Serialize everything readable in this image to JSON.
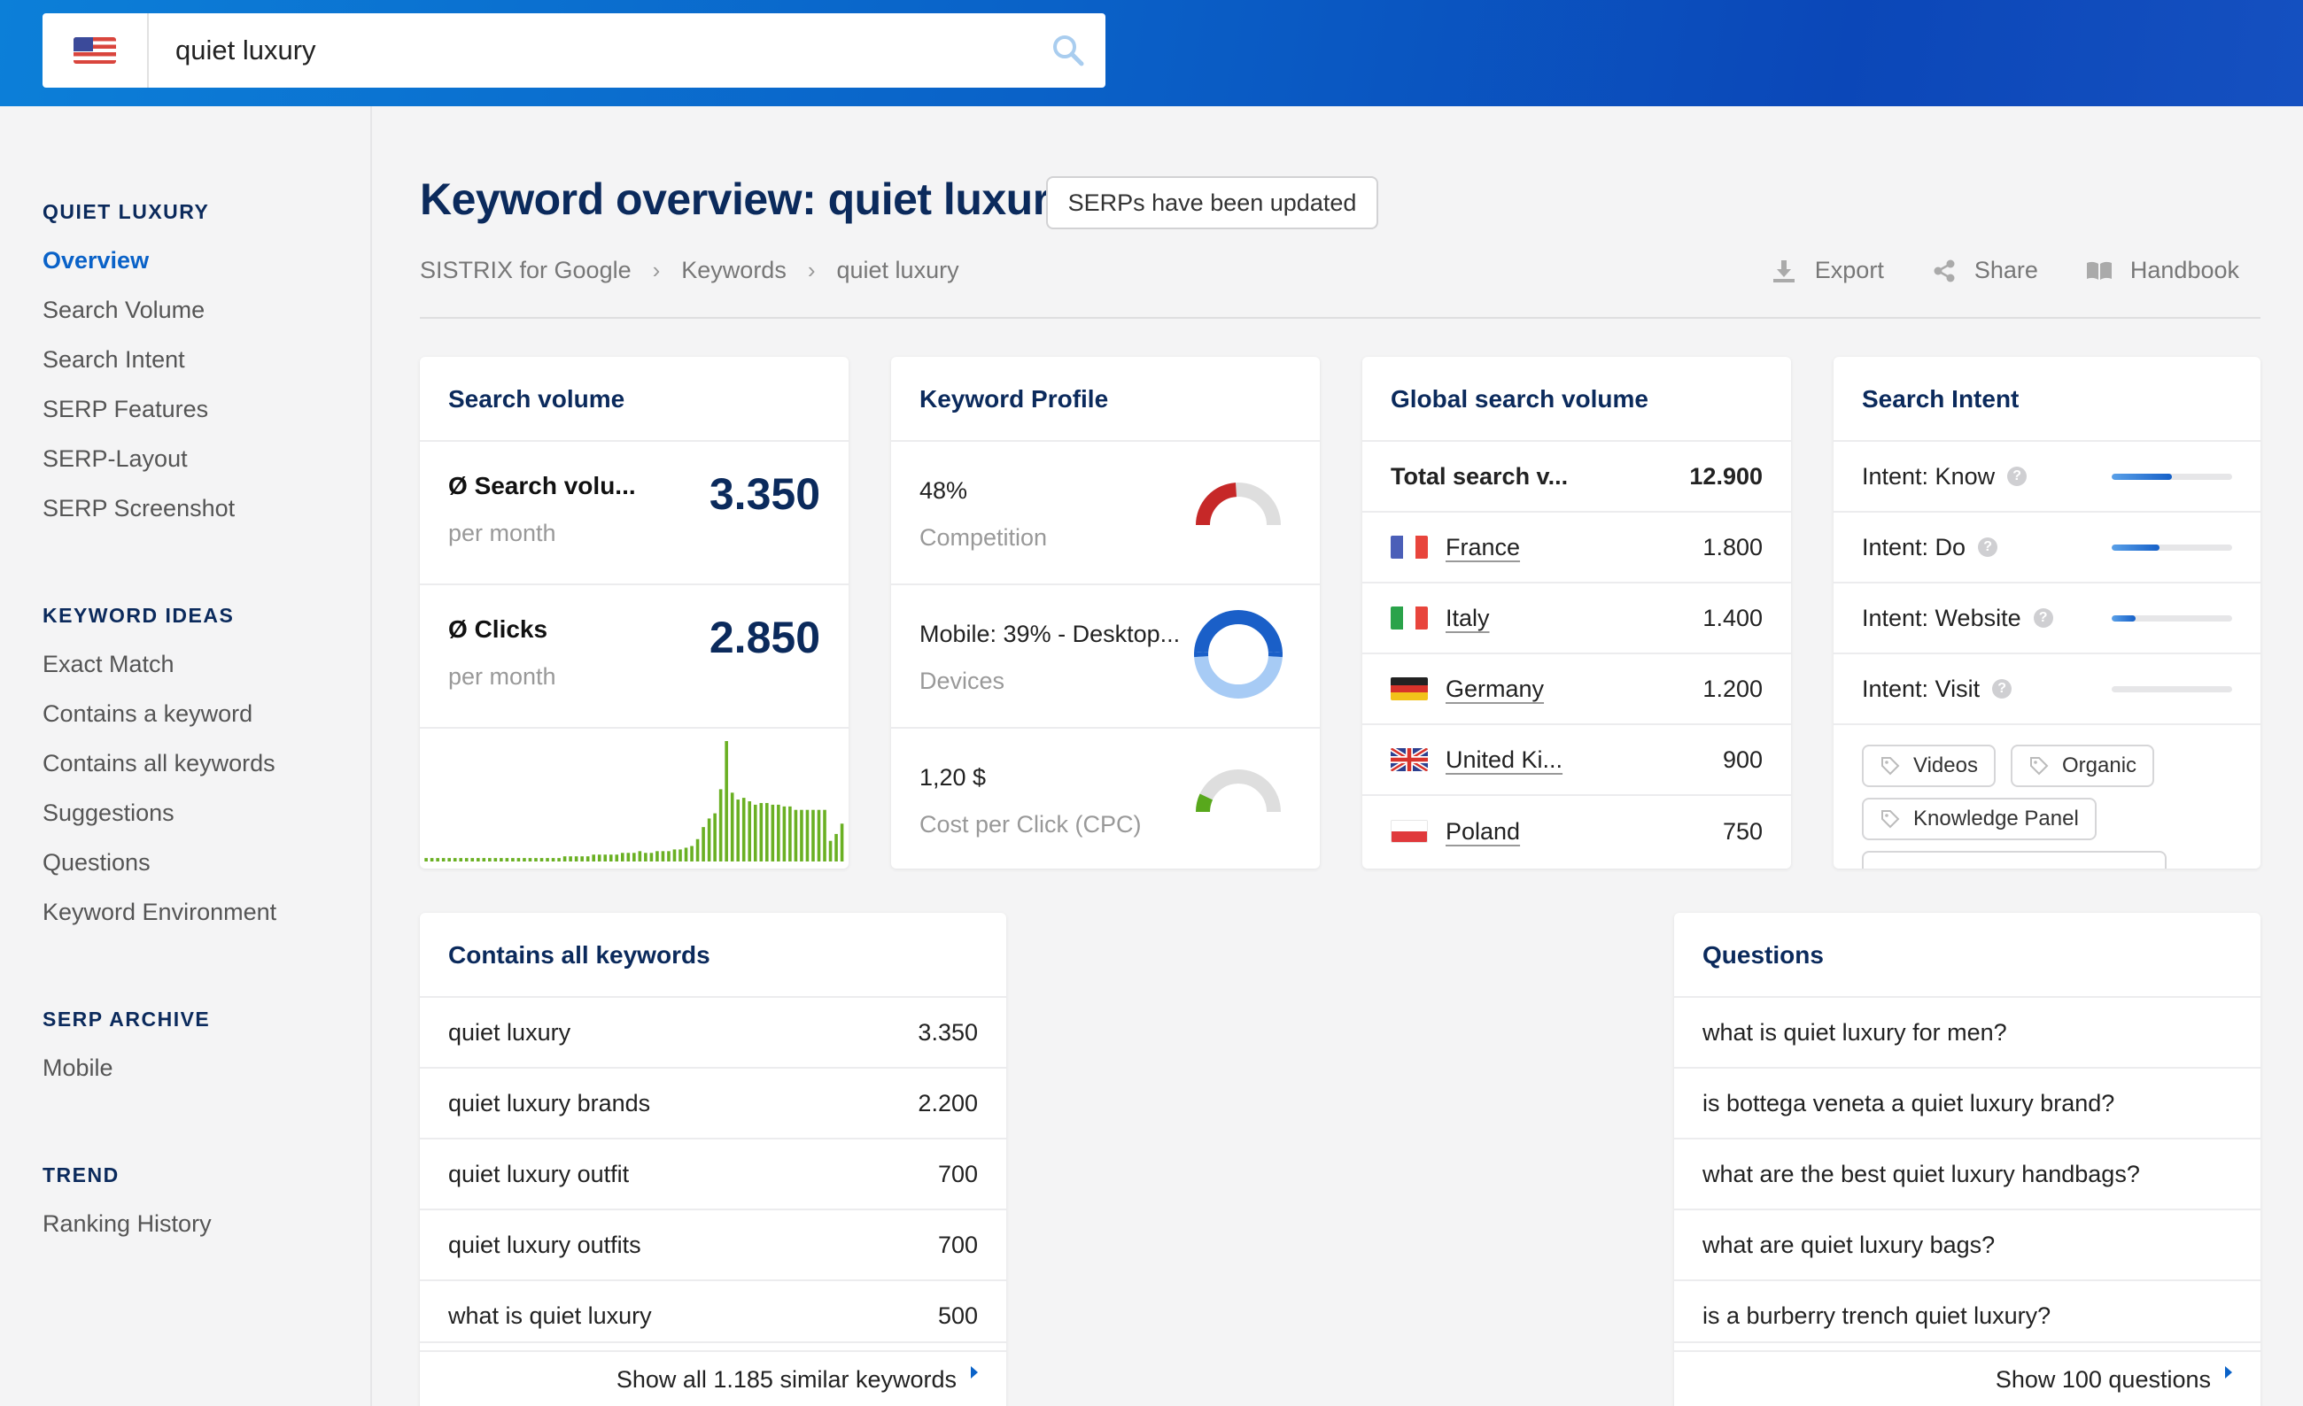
{
  "search": {
    "query": "quiet luxury",
    "country_flag": "us-flag-icon"
  },
  "sidebar": {
    "sections": [
      {
        "heading": "QUIET LUXURY",
        "items": [
          "Overview",
          "Search Volume",
          "Search Intent",
          "SERP Features",
          "SERP-Layout",
          "SERP Screenshot"
        ],
        "active": 0
      },
      {
        "heading": "KEYWORD IDEAS",
        "items": [
          "Exact Match",
          "Contains a keyword",
          "Contains all keywords",
          "Suggestions",
          "Questions",
          "Keyword Environment"
        ]
      },
      {
        "heading": "SERP ARCHIVE",
        "items": [
          "Mobile"
        ]
      },
      {
        "heading": "TREND",
        "items": [
          "Ranking History"
        ]
      }
    ]
  },
  "header": {
    "title": "Keyword overview: quiet luxury",
    "badge": "SERPs have been updated",
    "breadcrumb": [
      "SISTRIX for Google",
      "Keywords",
      "quiet luxury"
    ],
    "actions": {
      "export": "Export",
      "share": "Share",
      "handbook": "Handbook"
    }
  },
  "search_volume_card": {
    "title": "Search volume",
    "volume_label": "Search volu...",
    "volume_value": "3.350",
    "volume_unit": "per month",
    "clicks_label": "Clicks",
    "clicks_value": "2.850",
    "clicks_unit": "per month"
  },
  "keyword_profile_card": {
    "title": "Keyword Profile",
    "competition_value": "48%",
    "competition_label": "Competition",
    "devices_value": "Mobile: 39% - Desktop...",
    "devices_label": "Devices",
    "cpc_value": "1,20 $",
    "cpc_label": "Cost per Click (CPC)",
    "competition_pct": 48,
    "mobile_pct": 39,
    "cpc_gauge_pct": 14,
    "colors": {
      "competition": "#c62828",
      "mobile": "#1a5fc8",
      "desktop": "#a7cbf5",
      "cpc": "#58a81c",
      "track": "#dedede"
    }
  },
  "global_volume_card": {
    "title": "Global search volume",
    "total_label": "Total search v...",
    "total_value": "12.900",
    "countries": [
      {
        "name": "France",
        "value": "1.800",
        "flag": "france-flag-icon"
      },
      {
        "name": "Italy",
        "value": "1.400",
        "flag": "italy-flag-icon"
      },
      {
        "name": "Germany",
        "value": "1.200",
        "flag": "germany-flag-icon"
      },
      {
        "name": "United Ki...",
        "value": "900",
        "flag": "uk-flag-icon"
      },
      {
        "name": "Poland",
        "value": "750",
        "flag": "poland-flag-icon"
      }
    ]
  },
  "search_intent_card": {
    "title": "Search Intent",
    "intents": [
      {
        "label": "Intent: Know",
        "level": 0.5
      },
      {
        "label": "Intent: Do",
        "level": 0.4
      },
      {
        "label": "Intent: Website",
        "level": 0.2
      },
      {
        "label": "Intent: Visit",
        "level": 0.0
      }
    ],
    "tags": [
      "Videos",
      "Organic",
      "Knowledge Panel"
    ]
  },
  "contains_card": {
    "title": "Contains all keywords",
    "rows": [
      {
        "keyword": "quiet luxury",
        "value": "3.350"
      },
      {
        "keyword": "quiet luxury brands",
        "value": "2.200"
      },
      {
        "keyword": "quiet luxury outfit",
        "value": "700"
      },
      {
        "keyword": "quiet luxury outfits",
        "value": "700"
      },
      {
        "keyword": "what is quiet luxury",
        "value": "500"
      }
    ],
    "show_all": "Show all 1.185 similar keywords"
  },
  "questions_card": {
    "title": "Questions",
    "rows": [
      "what is quiet luxury for men?",
      "is bottega veneta a quiet luxury brand?",
      "what are the best quiet luxury handbags?",
      "what are quiet luxury bags?",
      "is a burberry trench quiet luxury?"
    ],
    "show_all": "Show 100 questions"
  },
  "chart_data": {
    "type": "bar",
    "values": [
      2,
      2,
      2,
      2,
      2,
      2,
      2,
      2,
      2,
      2,
      2,
      2,
      2,
      2,
      2,
      2,
      2,
      2,
      2,
      2,
      2,
      2,
      2,
      2,
      3,
      3,
      3,
      3,
      3,
      4,
      4,
      4,
      4,
      4,
      5,
      5,
      5,
      6,
      5,
      5,
      6,
      6,
      6,
      7,
      7,
      8,
      9,
      13,
      20,
      25,
      28,
      42,
      70,
      40,
      36,
      37,
      35,
      33,
      34,
      34,
      33,
      33,
      32,
      32,
      30,
      30,
      30,
      30,
      30,
      30,
      12,
      16,
      22
    ],
    "color": "#6ab023",
    "title": "",
    "xlabel": "",
    "ylabel": ""
  }
}
